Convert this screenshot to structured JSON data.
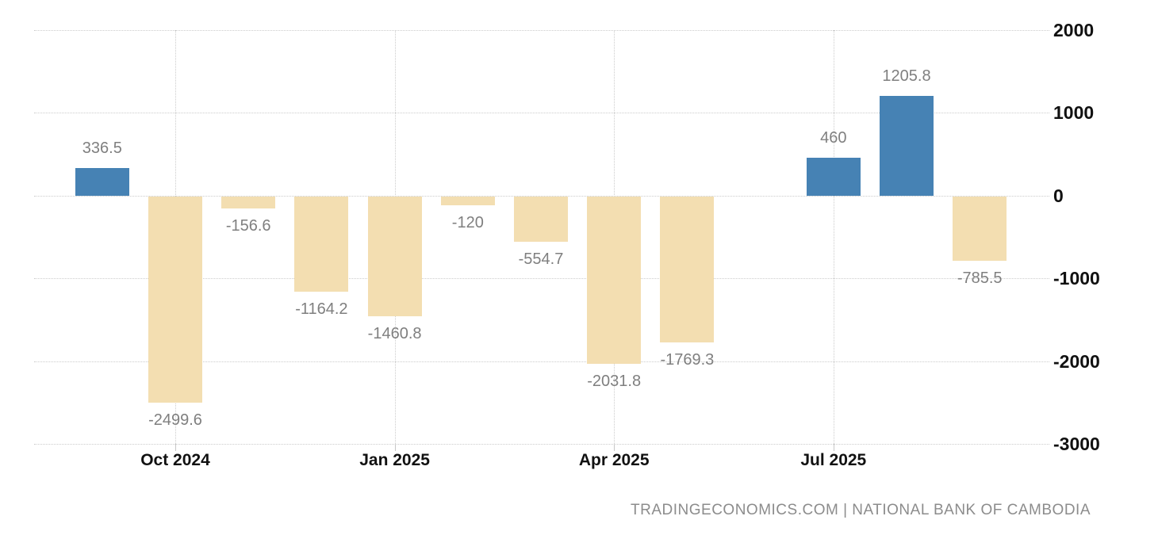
{
  "chart_data": {
    "type": "bar",
    "title": "",
    "xlabel": "",
    "ylabel": "",
    "grid": "dotted",
    "legend": "none",
    "y_axis": {
      "side": "right",
      "min": -3000,
      "max": 2000,
      "tick_labels": [
        "2000",
        "1000",
        "0",
        "-1000",
        "-2000",
        "-3000"
      ],
      "tick_values": [
        2000,
        1000,
        0,
        -1000,
        -2000,
        -3000
      ]
    },
    "x_axis": {
      "num_slots": 13,
      "ticks": [
        {
          "label": "Oct 2024",
          "slot": 1
        },
        {
          "label": "Jan 2025",
          "slot": 4
        },
        {
          "label": "Apr 2025",
          "slot": 7
        },
        {
          "label": "Jul 2025",
          "slot": 10
        }
      ]
    },
    "bars": [
      {
        "slot": 0,
        "value": 336.5,
        "label": "336.5"
      },
      {
        "slot": 1,
        "value": -2499.6,
        "label": "-2499.6"
      },
      {
        "slot": 2,
        "value": -156.6,
        "label": "-156.6"
      },
      {
        "slot": 3,
        "value": -1164.2,
        "label": "-1164.2"
      },
      {
        "slot": 4,
        "value": -1460.8,
        "label": "-1460.8"
      },
      {
        "slot": 5,
        "value": -120,
        "label": "-120"
      },
      {
        "slot": 6,
        "value": -554.7,
        "label": "-554.7"
      },
      {
        "slot": 7,
        "value": -2031.8,
        "label": "-2031.8"
      },
      {
        "slot": 8,
        "value": -1769.3,
        "label": "-1769.3"
      },
      {
        "slot": 10,
        "value": 460,
        "label": "460"
      },
      {
        "slot": 11,
        "value": 1205.8,
        "label": "1205.8"
      },
      {
        "slot": 12,
        "value": -785.5,
        "label": "-785.5"
      }
    ],
    "colors": {
      "positive_bar": "#4682b4",
      "negative_bar": "#f3deb1",
      "gridline": "#cccccc",
      "value_label": "#7f7f7f",
      "axis_label": "#111111",
      "attribution": "#8c8c8c"
    }
  },
  "attribution": {
    "text": "TRADINGECONOMICS.COM | NATIONAL BANK OF CAMBODIA"
  }
}
